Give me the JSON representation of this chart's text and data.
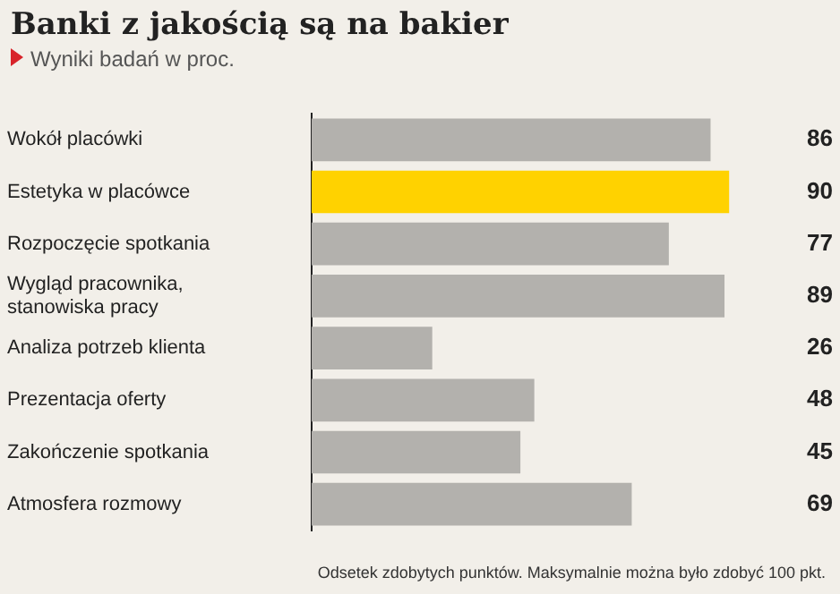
{
  "chart_data": {
    "type": "bar",
    "orientation": "horizontal",
    "title": "Banki z jakością są na bakier",
    "subtitle": "Wyniki badań w proc.",
    "categories": [
      "Wokół placówki",
      "Estetyka w placówce",
      "Rozpoczęcie spotkania",
      "Wygląd pracownika,\nstanowiska pracy",
      "Analiza potrzeb klienta",
      "Prezentacja oferty",
      "Zakończenie spotkania",
      "Atmosfera rozmowy"
    ],
    "values": [
      86,
      90,
      77,
      89,
      26,
      48,
      45,
      69
    ],
    "colors": [
      "#b3b1ad",
      "#ffd200",
      "#b3b1ad",
      "#b3b1ad",
      "#b3b1ad",
      "#b3b1ad",
      "#b3b1ad",
      "#b3b1ad"
    ],
    "data_labels": true,
    "legend": false,
    "annotations": [
      "Odsetek zdobytych punktów. Maksymalnie można było zdobyć 100 pkt."
    ]
  }
}
